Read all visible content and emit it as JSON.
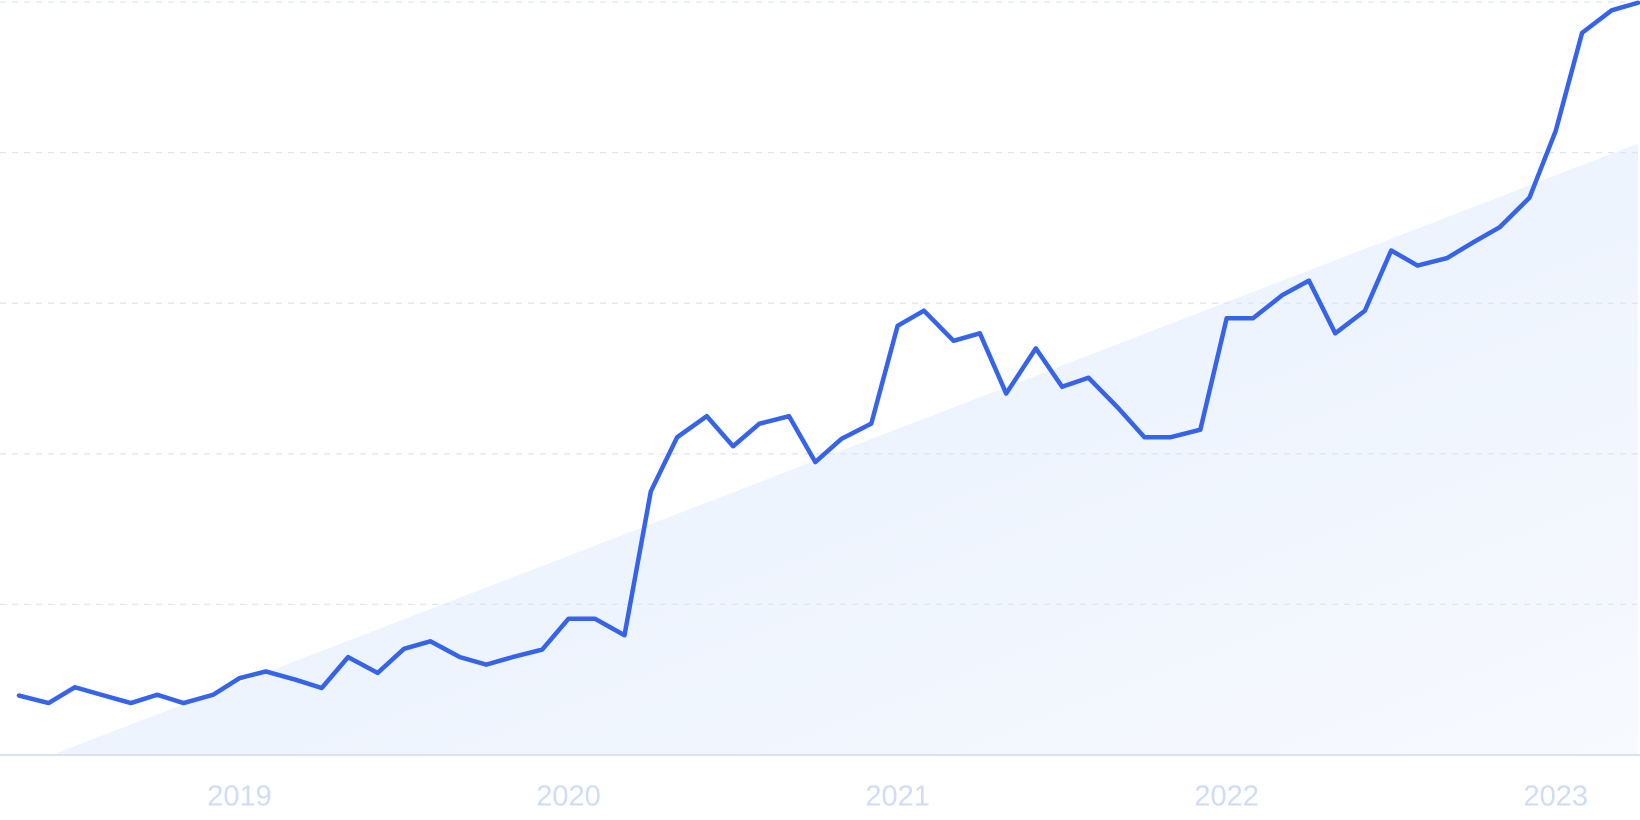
{
  "chart_data": {
    "type": "line",
    "x": [
      2018.33,
      2018.42,
      2018.5,
      2018.58,
      2018.67,
      2018.75,
      2018.83,
      2018.92,
      2019,
      2019.08,
      2019.17,
      2019.25,
      2019.33,
      2019.42,
      2019.5,
      2019.58,
      2019.67,
      2019.75,
      2019.83,
      2019.92,
      2020,
      2020.08,
      2020.17,
      2020.25,
      2020.33,
      2020.42,
      2020.5,
      2020.58,
      2020.67,
      2020.75,
      2020.83,
      2020.92,
      2021,
      2021.08,
      2021.17,
      2021.25,
      2021.33,
      2021.42,
      2021.5,
      2021.58,
      2021.67,
      2021.75,
      2021.83,
      2021.92,
      2022,
      2022.08,
      2022.17,
      2022.25,
      2022.33,
      2022.42,
      2022.5,
      2022.58,
      2022.67,
      2022.75,
      2022.83,
      2022.92,
      2023,
      2023.08,
      2023.17,
      2023.25
    ],
    "values": [
      7.9,
      6.9,
      9.0,
      8.0,
      6.9,
      8.0,
      6.9,
      8.0,
      10.2,
      11.1,
      10.0,
      8.9,
      13.0,
      10.9,
      14.1,
      15.1,
      13.0,
      12.0,
      13.0,
      14.0,
      18.1,
      18.1,
      15.9,
      35.0,
      42.2,
      45.0,
      41.0,
      44.0,
      45.0,
      38.9,
      42.0,
      44.0,
      57.0,
      59.0,
      55.0,
      56.0,
      48.0,
      54.0,
      48.9,
      50.1,
      46.1,
      42.2,
      42.2,
      43.2,
      58.0,
      58.0,
      61.1,
      63.0,
      56.0,
      59.0,
      67.0,
      65.0,
      66.0,
      68.1,
      70.1,
      74.0,
      82.9,
      95.9,
      98.9,
      99.9
    ],
    "color": "#3563e9",
    "trend": {
      "x": [
        2018.43,
        2023.25
      ],
      "values": [
        0,
        81.2
      ],
      "color": "#e6effb"
    },
    "xlim": [
      2018.33,
      2023.25
    ],
    "xticks": [
      2019,
      2020,
      2021,
      2022,
      2023
    ],
    "ylim": [
      0,
      100
    ],
    "yticks": [
      0,
      20,
      40,
      60,
      80,
      100
    ],
    "grid": true
  }
}
